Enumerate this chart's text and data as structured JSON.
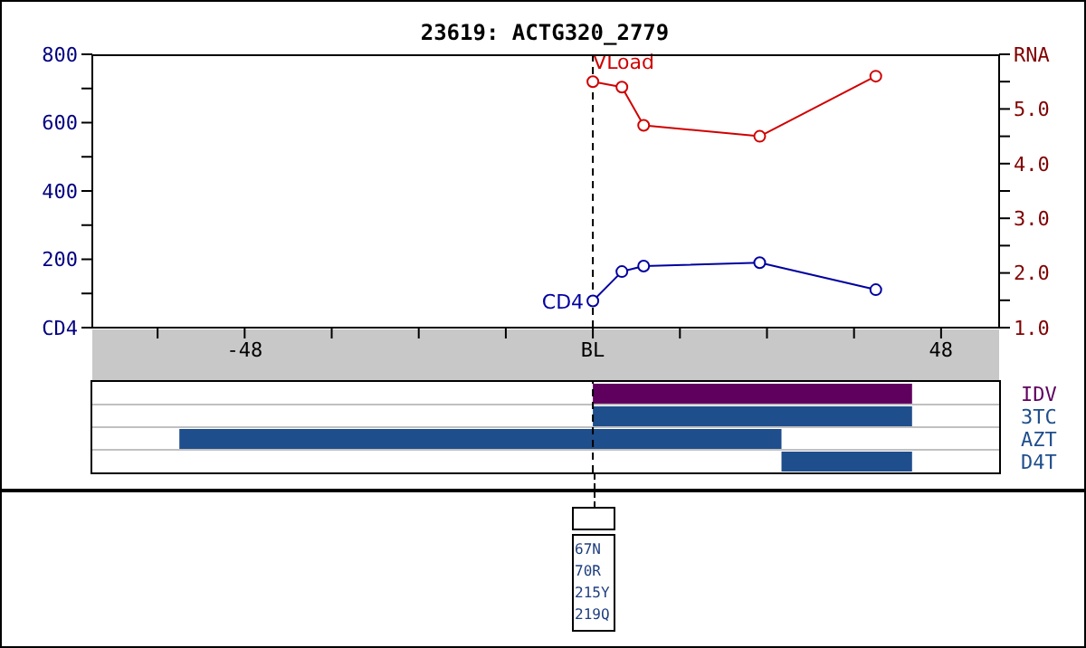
{
  "chart_data": [
    {
      "type": "line",
      "title": "23619: ACTG320_2779",
      "x": [
        0,
        4,
        7,
        23,
        39
      ],
      "series": [
        {
          "name": "CD4",
          "color": "#0000a0",
          "values": [
            78,
            164,
            180,
            190,
            111
          ]
        },
        {
          "name": "VLoad",
          "color": "#d00000",
          "axis": "y2",
          "values": [
            5.5,
            5.4,
            4.7,
            4.5,
            5.6
          ]
        }
      ],
      "xlim": [
        -69,
        56
      ],
      "xticks": [
        {
          "value": -60,
          "label": null
        },
        -48,
        {
          "value": -36,
          "label": null
        },
        {
          "value": -24,
          "label": null
        },
        {
          "value": -12,
          "label": null
        },
        {
          "value": 0,
          "label": "BL"
        },
        {
          "value": 12,
          "label": null
        },
        {
          "value": 24,
          "label": null
        },
        {
          "value": 36,
          "label": null
        },
        48
      ],
      "ylim": [
        0,
        800
      ],
      "yticks": [
        {
          "value": 0,
          "label": "CD4"
        },
        {
          "value": 100,
          "label": null
        },
        200,
        {
          "value": 300,
          "label": null
        },
        400,
        {
          "value": 500,
          "label": null
        },
        600,
        {
          "value": 700,
          "label": null
        },
        800
      ],
      "y2lim": [
        1,
        6
      ],
      "y2ticks": [
        {
          "value": 1,
          "label": "1.0"
        },
        {
          "value": 1.5,
          "label": null
        },
        {
          "value": 2,
          "label": "2.0"
        },
        {
          "value": 2.5,
          "label": null
        },
        {
          "value": 3,
          "label": "3.0"
        },
        {
          "value": 3.5,
          "label": null
        },
        {
          "value": 4,
          "label": "4.0"
        },
        {
          "value": 4.5,
          "label": null
        },
        {
          "value": 5,
          "label": "5.0"
        },
        {
          "value": 5.5,
          "label": null
        },
        {
          "value": 6,
          "label": "RNA"
        }
      ],
      "marker": "circle",
      "ref_lines": [
        {
          "axis": "x",
          "value": 0,
          "line_style": "dashed",
          "color": "#000000"
        }
      ]
    },
    {
      "type": "bar",
      "orientation": "horizontal",
      "categories": [
        "IDV",
        "3TC",
        "AZT",
        "D4T"
      ],
      "base": [
        0,
        0,
        -57,
        26
      ],
      "values": [
        44,
        44,
        83,
        18
      ],
      "colors": [
        "#5f005f",
        "#1f4e8c",
        "#1f4e8c",
        "#1f4e8c"
      ],
      "xlim": [
        -69,
        56
      ],
      "tick_labels": "y",
      "grid": "y",
      "ref_lines": [
        {
          "axis": "x",
          "value": 0,
          "line_style": "dashed",
          "color": "#000000"
        }
      ],
      "annotations": [
        "67N",
        "70R",
        "215Y",
        "219Q"
      ]
    }
  ]
}
